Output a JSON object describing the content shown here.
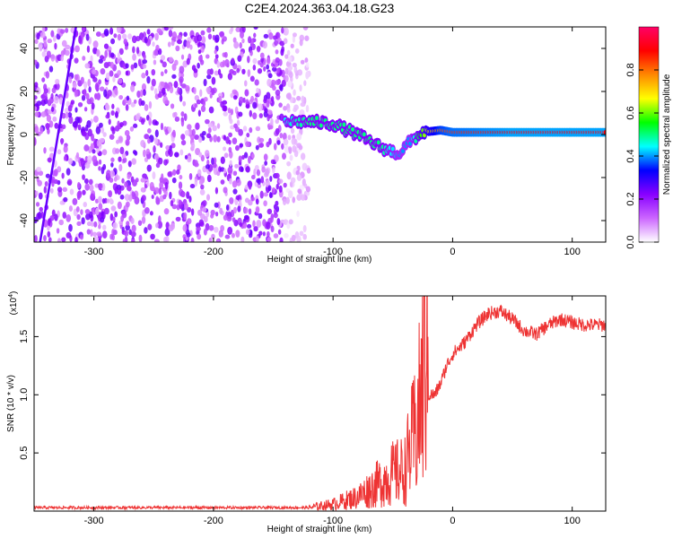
{
  "title": "C2E4.2024.363.04.18.G23",
  "chart_data": [
    {
      "type": "heatmap",
      "title": "C2E4.2024.363.04.18.G23",
      "xlabel": "Height of straight line (km)",
      "ylabel": "Frequency (Hz)",
      "xlim": [
        -350,
        128
      ],
      "ylim": [
        -50,
        50
      ],
      "xticks": [
        -300,
        -200,
        -100,
        0,
        100
      ],
      "yticks": [
        -40,
        -20,
        0,
        20,
        40
      ],
      "colorbar": {
        "label": "Normalized spectral amplitude",
        "range": [
          0.0,
          1.0
        ],
        "ticks": [
          "0.0",
          "0.2",
          "0.4",
          "0.6",
          "0.8"
        ],
        "colors": [
          "#ffffff",
          "#cc66ff",
          "#8800ff",
          "#0000ff",
          "#00ffff",
          "#00ff00",
          "#ffff00",
          "#ff8800",
          "#ff0000",
          "#ff0066"
        ]
      },
      "features": [
        {
          "name": "broadband noise",
          "x_range": [
            -350,
            -140
          ],
          "freq_range": [
            -50,
            50
          ],
          "amplitude": 0.15
        },
        {
          "name": "sparse noise",
          "x_range": [
            -140,
            -120
          ],
          "freq_range": [
            -50,
            50
          ],
          "amplitude": 0.05
        },
        {
          "name": "diagonal streak",
          "x_start": -315,
          "x_end": -345,
          "freq_start": 50,
          "freq_end": -50,
          "amplitude": 0.25
        },
        {
          "name": "tone",
          "x": [
            -140,
            -120,
            -100,
            -80,
            -60,
            -45,
            -35,
            -25,
            -10,
            0,
            50,
            128
          ],
          "freq": [
            6,
            6,
            5,
            0,
            -6,
            -9,
            -3,
            1,
            2,
            1,
            1,
            1
          ],
          "amplitude": [
            0.45,
            0.5,
            0.5,
            0.5,
            0.5,
            0.4,
            0.4,
            0.6,
            0.8,
            0.85,
            0.9,
            0.9
          ]
        }
      ]
    },
    {
      "type": "line",
      "xlabel": "Height of straight line (km)",
      "ylabel": "SNR (10 * v/v)",
      "y_exponent": "(x10",
      "y_exponent_power": "4",
      "y_exponent_close": ")",
      "xlim": [
        -350,
        128
      ],
      "ylim": [
        0,
        1.85
      ],
      "xticks": [
        -300,
        -200,
        -100,
        0,
        100
      ],
      "yticks": [
        "0.5",
        "1.0",
        "1.5"
      ],
      "color": "#ee3333",
      "x": [
        -350,
        -300,
        -250,
        -200,
        -150,
        -120,
        -100,
        -80,
        -60,
        -50,
        -40,
        -35,
        -30,
        -25,
        -22,
        -20,
        -15,
        -10,
        -5,
        0,
        10,
        20,
        30,
        40,
        50,
        60,
        70,
        80,
        90,
        100,
        110,
        120,
        128
      ],
      "y": [
        0.03,
        0.03,
        0.03,
        0.03,
        0.03,
        0.03,
        0.06,
        0.12,
        0.25,
        0.32,
        0.35,
        0.55,
        0.7,
        1.1,
        1.5,
        1.0,
        1.0,
        1.1,
        1.25,
        1.35,
        1.45,
        1.6,
        1.7,
        1.72,
        1.65,
        1.55,
        1.52,
        1.6,
        1.65,
        1.62,
        1.6,
        1.6,
        1.6
      ]
    }
  ]
}
